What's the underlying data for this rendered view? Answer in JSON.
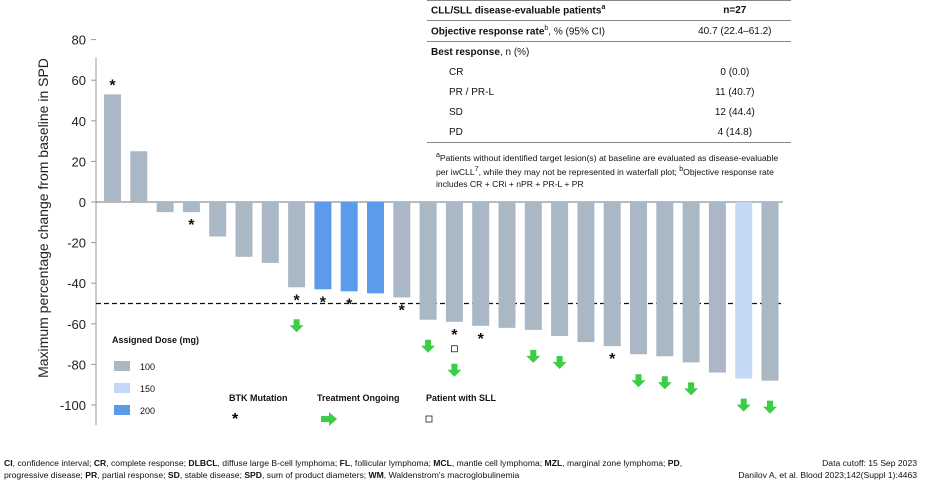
{
  "chart_data": {
    "type": "bar",
    "title": "",
    "ylabel": "Maximum percentage change from baseline in SPD",
    "xlabel": "",
    "ylim": [
      -110,
      85
    ],
    "yticks": [
      80,
      60,
      40,
      20,
      0,
      -20,
      -40,
      -60,
      -80,
      -100
    ],
    "threshold": -50,
    "bars": [
      {
        "value": 53,
        "dose": "100",
        "btk": true,
        "ongoing": false,
        "sll": false
      },
      {
        "value": 25,
        "dose": "100",
        "btk": false,
        "ongoing": false,
        "sll": false
      },
      {
        "value": -5,
        "dose": "100",
        "btk": false,
        "ongoing": false,
        "sll": false
      },
      {
        "value": -5,
        "dose": "100",
        "btk": true,
        "ongoing": false,
        "sll": false
      },
      {
        "value": -17,
        "dose": "100",
        "btk": false,
        "ongoing": false,
        "sll": false
      },
      {
        "value": -27,
        "dose": "100",
        "btk": false,
        "ongoing": false,
        "sll": false
      },
      {
        "value": -30,
        "dose": "100",
        "btk": false,
        "ongoing": false,
        "sll": false
      },
      {
        "value": -42,
        "dose": "100",
        "btk": true,
        "ongoing": true,
        "sll": false
      },
      {
        "value": -43,
        "dose": "200",
        "btk": true,
        "ongoing": false,
        "sll": false
      },
      {
        "value": -44,
        "dose": "200",
        "btk": true,
        "ongoing": false,
        "sll": false
      },
      {
        "value": -45,
        "dose": "200",
        "btk": false,
        "ongoing": false,
        "sll": false
      },
      {
        "value": -47,
        "dose": "100",
        "btk": true,
        "ongoing": false,
        "sll": false
      },
      {
        "value": -58,
        "dose": "100",
        "btk": false,
        "ongoing": true,
        "sll": false
      },
      {
        "value": -59,
        "dose": "100",
        "btk": true,
        "ongoing": true,
        "sll": true
      },
      {
        "value": -61,
        "dose": "100",
        "btk": true,
        "ongoing": false,
        "sll": false
      },
      {
        "value": -62,
        "dose": "100",
        "btk": false,
        "ongoing": false,
        "sll": false
      },
      {
        "value": -63,
        "dose": "100",
        "btk": false,
        "ongoing": true,
        "sll": false
      },
      {
        "value": -66,
        "dose": "100",
        "btk": false,
        "ongoing": true,
        "sll": false
      },
      {
        "value": -69,
        "dose": "100",
        "btk": false,
        "ongoing": false,
        "sll": false
      },
      {
        "value": -71,
        "dose": "100",
        "btk": true,
        "ongoing": false,
        "sll": false
      },
      {
        "value": -75,
        "dose": "100",
        "btk": false,
        "ongoing": true,
        "sll": false
      },
      {
        "value": -76,
        "dose": "100",
        "btk": false,
        "ongoing": true,
        "sll": false
      },
      {
        "value": -79,
        "dose": "100",
        "btk": false,
        "ongoing": true,
        "sll": false
      },
      {
        "value": -84,
        "dose": "100",
        "btk": false,
        "ongoing": false,
        "sll": false
      },
      {
        "value": -87,
        "dose": "150",
        "btk": false,
        "ongoing": true,
        "sll": false
      },
      {
        "value": -88,
        "dose": "100",
        "btk": false,
        "ongoing": true,
        "sll": false
      }
    ],
    "legend": {
      "title": "Assigned Dose (mg)",
      "items": [
        {
          "label": "100",
          "color": "#aab7c4"
        },
        {
          "label": "150",
          "color": "#c4d9f5"
        },
        {
          "label": "200",
          "color": "#5b9bea"
        }
      ],
      "markers": [
        {
          "label": "BTK Mutation",
          "symbol": "*"
        },
        {
          "label": "Treatment Ongoing",
          "symbol": "arrow"
        },
        {
          "label": "Patient with SLL",
          "symbol": "square"
        }
      ]
    },
    "colors": {
      "100": "#aab7c4",
      "150": "#c4d9f5",
      "200": "#5b9bea",
      "arrow": "#3bcc48"
    }
  },
  "table": {
    "header_label": "CLL/SLL disease-evaluable patients",
    "header_sup": "a",
    "header_value": "n=27",
    "orr_label_bold": "Objective response rate",
    "orr_sup": "b",
    "orr_label_rest": ", % (95% CI)",
    "orr_value": "40.7 (22.4–61.2)",
    "best_bold": "Best response",
    "best_rest": ", n (%)",
    "rows": [
      {
        "label": "CR",
        "value": "0 (0.0)"
      },
      {
        "label": "PR / PR-L",
        "value": "11 (40.7)"
      },
      {
        "label": "SD",
        "value": "12 (44.4)"
      },
      {
        "label": "PD",
        "value": "4 (14.8)"
      }
    ]
  },
  "footnote": {
    "a_sup": "a",
    "a_text": "Patients without identified target lesion(s) at baseline are evaluated as disease-evaluable per iwCLL",
    "a_ref": "7",
    "a_text2": ", while they may not be represented in waterfall plot; ",
    "b_sup": "b",
    "b_text": "Objective response rate includes CR + CRi + nPR + PR-L + PR"
  },
  "abbreviations": [
    {
      "term": "CI",
      "def": ", confidence interval; "
    },
    {
      "term": "CR",
      "def": ", complete response; "
    },
    {
      "term": "DLBCL",
      "def": ", diffuse large B-cell lymphoma; "
    },
    {
      "term": "FL",
      "def": ", follicular lymphoma; "
    },
    {
      "term": "MCL",
      "def": ", mantle cell lymphoma; "
    },
    {
      "term": "MZL",
      "def": ", marginal zone lymphoma; "
    },
    {
      "term": "PD",
      "def": ", progressive disease; "
    },
    {
      "term": "PR",
      "def": ", partial response; "
    },
    {
      "term": "SD",
      "def": ", stable disease; "
    },
    {
      "term": "SPD",
      "def": ", sum of product diameters; "
    },
    {
      "term": "WM",
      "def": ", Waldenstrom's macroglobulinemia"
    }
  ],
  "cutoff": "Data cutoff: 15 Sep 2023",
  "citation": "Danilov A, et al. Blood 2023;142(Suppl 1):4463"
}
